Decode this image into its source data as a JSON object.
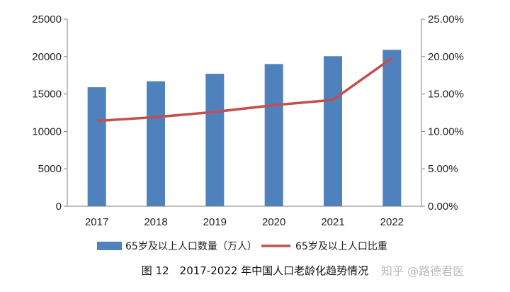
{
  "chart_data": {
    "type": "bar",
    "categories": [
      "2017",
      "2018",
      "2019",
      "2020",
      "2021",
      "2022"
    ],
    "series": [
      {
        "name": "65岁及以上人口数量（万人）",
        "type": "bar",
        "axis": "left",
        "values": [
          15900,
          16700,
          17700,
          19000,
          20050,
          20900
        ],
        "color": "#4f81bd"
      },
      {
        "name": "65岁及以上人口比重",
        "type": "line",
        "axis": "right",
        "values": [
          11.4,
          11.9,
          12.6,
          13.5,
          14.2,
          19.8
        ],
        "color": "#c0504d"
      }
    ],
    "y_left": {
      "ylim": [
        0,
        25000
      ],
      "ticks": [
        "0",
        "5000",
        "10000",
        "15000",
        "20000",
        "25000"
      ]
    },
    "y_right": {
      "ylim": [
        0,
        25
      ],
      "ticks": [
        "0.00%",
        "5.00%",
        "10.00%",
        "15.00%",
        "20.00%",
        "25.00%"
      ]
    },
    "legend_position": "bottom",
    "grid": false
  },
  "caption": "图 12　2017-2022 年中国人口老龄化趋势情况",
  "watermark": "知乎 @路德君医"
}
